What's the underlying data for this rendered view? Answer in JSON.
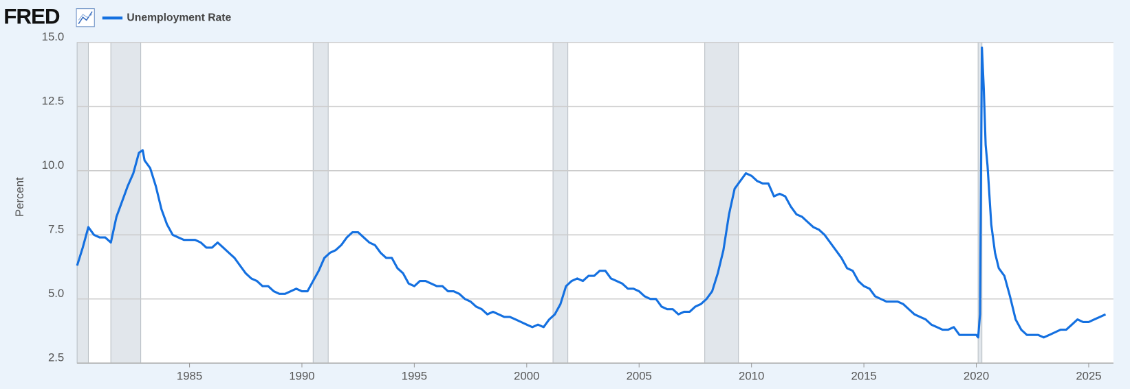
{
  "chart_data": {
    "type": "line",
    "logo": "FRED",
    "ylabel": "Percent",
    "x": [
      1980,
      1980.25,
      1980.5,
      1980.75,
      1981,
      1981.25,
      1981.5,
      1981.75,
      1982,
      1982.25,
      1982.5,
      1982.75,
      1982.917,
      1983,
      1983.25,
      1983.5,
      1983.75,
      1984,
      1984.25,
      1984.5,
      1984.75,
      1985,
      1985.25,
      1985.5,
      1985.75,
      1986,
      1986.25,
      1986.5,
      1986.75,
      1987,
      1987.25,
      1987.5,
      1987.75,
      1988,
      1988.25,
      1988.5,
      1988.75,
      1989,
      1989.25,
      1989.5,
      1989.75,
      1990,
      1990.25,
      1990.5,
      1990.75,
      1991,
      1991.25,
      1991.5,
      1991.75,
      1992,
      1992.25,
      1992.5,
      1992.75,
      1993,
      1993.25,
      1993.5,
      1993.75,
      1994,
      1994.25,
      1994.5,
      1994.75,
      1995,
      1995.25,
      1995.5,
      1995.75,
      1996,
      1996.25,
      1996.5,
      1996.75,
      1997,
      1997.25,
      1997.5,
      1997.75,
      1998,
      1998.25,
      1998.5,
      1998.75,
      1999,
      1999.25,
      1999.5,
      1999.75,
      2000,
      2000.25,
      2000.5,
      2000.75,
      2001,
      2001.25,
      2001.5,
      2001.75,
      2002,
      2002.25,
      2002.5,
      2002.75,
      2003,
      2003.25,
      2003.5,
      2003.75,
      2004,
      2004.25,
      2004.5,
      2004.75,
      2005,
      2005.25,
      2005.5,
      2005.75,
      2006,
      2006.25,
      2006.5,
      2006.75,
      2007,
      2007.25,
      2007.5,
      2007.75,
      2008,
      2008.25,
      2008.5,
      2008.75,
      2009,
      2009.25,
      2009.5,
      2009.75,
      2010,
      2010.25,
      2010.5,
      2010.75,
      2011,
      2011.25,
      2011.5,
      2011.75,
      2012,
      2012.25,
      2012.5,
      2012.75,
      2013,
      2013.25,
      2013.5,
      2013.75,
      2014,
      2014.25,
      2014.5,
      2014.75,
      2015,
      2015.25,
      2015.5,
      2015.75,
      2016,
      2016.25,
      2016.5,
      2016.75,
      2017,
      2017.25,
      2017.5,
      2017.75,
      2018,
      2018.25,
      2018.5,
      2018.75,
      2019,
      2019.25,
      2019.5,
      2019.75,
      2020,
      2020.083,
      2020.167,
      2020.25,
      2020.333,
      2020.417,
      2020.5,
      2020.667,
      2020.833,
      2021,
      2021.25,
      2021.5,
      2021.75,
      2022,
      2022.25,
      2022.5,
      2022.75,
      2023,
      2023.25,
      2023.5,
      2023.75,
      2024,
      2024.25,
      2024.5,
      2024.75,
      2025,
      2025.25,
      2025.5,
      2025.75
    ],
    "series": [
      {
        "name": "Unemployment Rate",
        "color": "#1470e0",
        "values": [
          6.3,
          7.0,
          7.8,
          7.5,
          7.4,
          7.4,
          7.2,
          8.2,
          8.8,
          9.4,
          9.9,
          10.7,
          10.8,
          10.4,
          10.1,
          9.4,
          8.5,
          7.9,
          7.5,
          7.4,
          7.3,
          7.3,
          7.3,
          7.2,
          7.0,
          7.0,
          7.2,
          7.0,
          6.8,
          6.6,
          6.3,
          6.0,
          5.8,
          5.7,
          5.5,
          5.5,
          5.3,
          5.2,
          5.2,
          5.3,
          5.4,
          5.3,
          5.3,
          5.7,
          6.1,
          6.6,
          6.8,
          6.9,
          7.1,
          7.4,
          7.6,
          7.6,
          7.4,
          7.2,
          7.1,
          6.8,
          6.6,
          6.6,
          6.2,
          6.0,
          5.6,
          5.5,
          5.7,
          5.7,
          5.6,
          5.5,
          5.5,
          5.3,
          5.3,
          5.2,
          5.0,
          4.9,
          4.7,
          4.6,
          4.4,
          4.5,
          4.4,
          4.3,
          4.3,
          4.2,
          4.1,
          4.0,
          3.9,
          4.0,
          3.9,
          4.2,
          4.4,
          4.8,
          5.5,
          5.7,
          5.8,
          5.7,
          5.9,
          5.9,
          6.1,
          6.1,
          5.8,
          5.7,
          5.6,
          5.4,
          5.4,
          5.3,
          5.1,
          5.0,
          5.0,
          4.7,
          4.6,
          4.6,
          4.4,
          4.5,
          4.5,
          4.7,
          4.8,
          5.0,
          5.3,
          6.0,
          6.9,
          8.3,
          9.3,
          9.6,
          9.9,
          9.8,
          9.6,
          9.5,
          9.5,
          9.0,
          9.1,
          9.0,
          8.6,
          8.3,
          8.2,
          8.0,
          7.8,
          7.7,
          7.5,
          7.2,
          6.9,
          6.6,
          6.2,
          6.1,
          5.7,
          5.5,
          5.4,
          5.1,
          5.0,
          4.9,
          4.9,
          4.9,
          4.8,
          4.6,
          4.4,
          4.3,
          4.2,
          4.0,
          3.9,
          3.8,
          3.8,
          3.9,
          3.6,
          3.6,
          3.6,
          3.6,
          3.5,
          4.4,
          14.8,
          13.2,
          11.0,
          10.2,
          7.9,
          6.8,
          6.2,
          5.9,
          5.1,
          4.2,
          3.8,
          3.6,
          3.6,
          3.6,
          3.5,
          3.6,
          3.7,
          3.8,
          3.8,
          4.0,
          4.2,
          4.1,
          4.1,
          4.2,
          4.3,
          4.4
        ]
      }
    ],
    "recessions": [
      [
        1980.0,
        1980.5
      ],
      [
        1981.5,
        1982.83
      ],
      [
        1990.5,
        1991.17
      ],
      [
        2001.17,
        2001.83
      ],
      [
        2007.92,
        2009.42
      ],
      [
        2020.08,
        2020.25
      ]
    ],
    "recession_color": "#e1e6eb",
    "xlim": [
      1980,
      2026.1
    ],
    "xticks": [
      1985,
      1990,
      1995,
      2000,
      2005,
      2010,
      2015,
      2020,
      2025
    ],
    "ylim": [
      2.5,
      15
    ],
    "yticks": [
      {
        "value": 15,
        "label": "15.0"
      },
      12.5,
      {
        "value": 10,
        "label": "10.0"
      },
      7.5,
      {
        "value": 5,
        "label": "5.0"
      },
      2.5
    ],
    "grid": true
  }
}
